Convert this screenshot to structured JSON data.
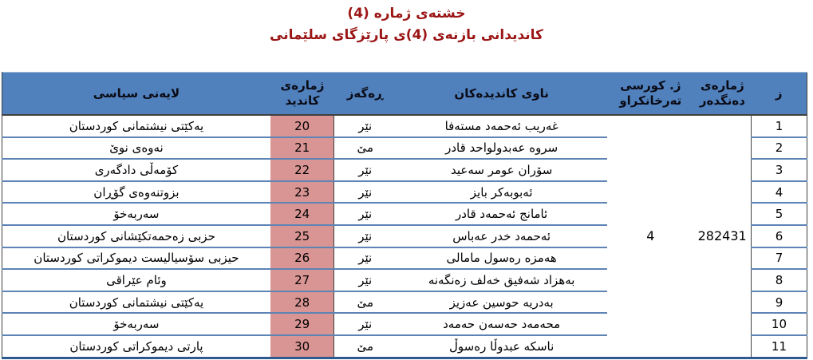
{
  "title": {
    "line1": "خشتەی ژماره (4)",
    "line2": "کاندیدانی بازنەی (4)ی پارێزگای سلێمانی"
  },
  "table": {
    "headers": {
      "z": "ز",
      "voter_line1": "ژمارەی",
      "voter_line2": "دەنگدەر",
      "seat_line1": "ژ. کورسی",
      "seat_line2": "تەرخانکراو",
      "names": "ناوی کاندیدەکان",
      "gender": "ڕەگەز",
      "candno_line1": "ژمارەی",
      "candno_line2": "کاندید",
      "party": "لایەنی سیاسی"
    },
    "merged": {
      "reserved_seat_value": "4",
      "voter_number_value": "282431"
    },
    "rows": [
      {
        "z": "1",
        "name": "غەریب ئەحمەد مستەفا",
        "gender": "نێر",
        "number": "20",
        "party": "یەکێتی نیشتمانی کوردستان"
      },
      {
        "z": "2",
        "name": "سروه عەبدولواحد قادر",
        "gender": "مێ",
        "number": "21",
        "party": "نەوەی نوێ"
      },
      {
        "z": "3",
        "name": "سۆران عومر سەعید",
        "gender": "نێر",
        "number": "22",
        "party": "کۆمەڵی دادگەری"
      },
      {
        "z": "4",
        "name": "ئەبوبەکر بایز",
        "gender": "نێر",
        "number": "23",
        "party": "بزوتنەوەی گۆڕان"
      },
      {
        "z": "5",
        "name": "ئامانج ئەحمەد قادر",
        "gender": "نێر",
        "number": "24",
        "party": "سەربەخۆ"
      },
      {
        "z": "6",
        "name": "ئەحمەد خدر عەباس",
        "gender": "نێر",
        "number": "25",
        "party": "حزبی زەحمەتکێشانی کوردستان"
      },
      {
        "z": "7",
        "name": "هەمزە رەسول مامالی",
        "gender": "نێر",
        "number": "26",
        "party": "حیزبی سۆسیالیست دیموکراتی کوردستان"
      },
      {
        "z": "8",
        "name": "بەهزاد شەفیق خەلف زەنگەنە",
        "gender": "نێر",
        "number": "27",
        "party": "وئام عێراقی"
      },
      {
        "z": "9",
        "name": "بەدریە حوسین عەزیز",
        "gender": "مێ",
        "number": "28",
        "party": "یەکێتی نیشتمانی کوردستان"
      },
      {
        "z": "10",
        "name": "محەمەد حەسەن حەمەد",
        "gender": "نێر",
        "number": "29",
        "party": "سەربەخۆ"
      },
      {
        "z": "11",
        "name": "ناسکە عبدوڵا رەسوڵ",
        "gender": "مێ",
        "number": "30",
        "party": "پارتی دیموکراتی کوردستان"
      }
    ]
  },
  "colors": {
    "title_text": "#9B1515",
    "header_bg": "#5081BD",
    "highlight_cell_bg": "#D99594",
    "row_separator": "#5D84B4",
    "bottom_border": "#2E5A8F",
    "dark_border": "#3F3F3F"
  }
}
